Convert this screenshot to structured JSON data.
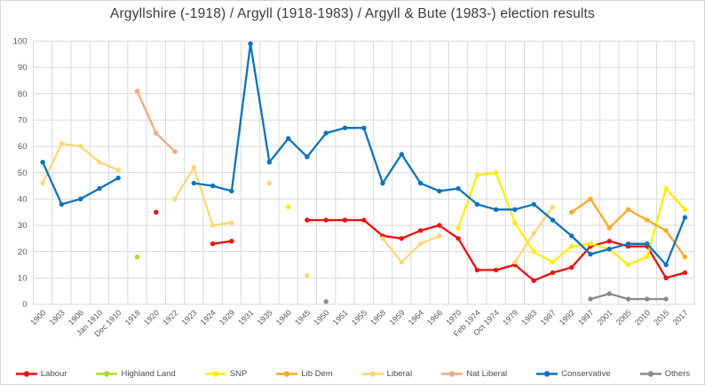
{
  "chart_data": {
    "type": "line",
    "title": "Argyllshire (-1918) / Argyll (1918-1983) / Argyll & Bute (1983-) election results",
    "categories": [
      "1900",
      "1903",
      "1906",
      "Jan 1910",
      "Dec 1910",
      "1918",
      "1920",
      "1922",
      "1923",
      "1924",
      "1929",
      "1931",
      "1935",
      "1940",
      "1945",
      "1950",
      "1951",
      "1955",
      "1958",
      "1959",
      "1964",
      "1966",
      "1970",
      "Feb 1974",
      "Oct 1974",
      "1979",
      "1983",
      "1987",
      "1992",
      "1997",
      "2001",
      "2005",
      "2010",
      "2015",
      "2017"
    ],
    "ylim": [
      0,
      100
    ],
    "y_ticks": [
      0,
      10,
      20,
      30,
      40,
      50,
      60,
      70,
      80,
      90,
      100
    ],
    "grid": true,
    "legend_position": "bottom",
    "series": [
      {
        "name": "Labour",
        "color": "#F40B0B",
        "values": [
          null,
          null,
          null,
          null,
          null,
          null,
          35,
          null,
          null,
          23,
          24,
          null,
          null,
          null,
          32,
          32,
          32,
          32,
          26,
          25,
          28,
          30,
          25,
          13,
          13,
          15,
          9,
          12,
          14,
          22,
          24,
          22,
          22,
          10,
          12
        ]
      },
      {
        "name": "Highland Land",
        "color": "#A8E02A",
        "values": [
          null,
          null,
          null,
          null,
          null,
          18,
          null,
          null,
          null,
          null,
          null,
          null,
          null,
          null,
          null,
          null,
          null,
          null,
          null,
          null,
          null,
          null,
          null,
          null,
          null,
          null,
          null,
          null,
          null,
          null,
          null,
          null,
          null,
          null,
          null
        ]
      },
      {
        "name": "SNP",
        "color": "#FFEE00",
        "values": [
          null,
          null,
          null,
          null,
          null,
          null,
          null,
          null,
          null,
          null,
          null,
          null,
          null,
          37,
          null,
          null,
          null,
          null,
          null,
          null,
          null,
          null,
          29,
          49,
          50,
          31,
          20,
          16,
          22,
          23,
          21,
          15,
          18,
          44,
          36
        ]
      },
      {
        "name": "Lib Dem",
        "color": "#FFA826",
        "values": [
          null,
          null,
          null,
          null,
          null,
          null,
          null,
          null,
          null,
          null,
          null,
          null,
          null,
          null,
          null,
          null,
          null,
          null,
          null,
          null,
          null,
          null,
          null,
          null,
          null,
          null,
          null,
          null,
          35,
          40,
          29,
          36,
          32,
          28,
          18
        ]
      },
      {
        "name": "Liberal",
        "color": "#FFD778",
        "values": [
          46,
          61,
          60,
          54,
          51,
          null,
          null,
          40,
          52,
          30,
          31,
          null,
          46,
          null,
          11,
          null,
          null,
          null,
          25,
          16,
          23,
          26,
          null,
          null,
          null,
          16,
          27,
          37,
          null,
          null,
          null,
          null,
          null,
          null,
          null
        ]
      },
      {
        "name": "Nat Liberal",
        "color": "#F2A87D",
        "values": [
          null,
          null,
          null,
          null,
          null,
          81,
          65,
          58,
          null,
          null,
          null,
          null,
          null,
          null,
          null,
          null,
          null,
          null,
          null,
          null,
          null,
          null,
          null,
          null,
          null,
          null,
          null,
          null,
          null,
          null,
          null,
          null,
          null,
          null,
          null
        ]
      },
      {
        "name": "Conservative",
        "color": "#0C72BE",
        "values": [
          54,
          38,
          40,
          44,
          48,
          null,
          null,
          null,
          46,
          45,
          43,
          99,
          54,
          63,
          56,
          65,
          67,
          67,
          46,
          57,
          46,
          43,
          44,
          38,
          36,
          36,
          38,
          32,
          26,
          19,
          21,
          23,
          23,
          15,
          33
        ]
      },
      {
        "name": "Others",
        "color": "#8A8A8A",
        "values": [
          null,
          null,
          null,
          null,
          null,
          null,
          null,
          null,
          null,
          null,
          null,
          null,
          null,
          null,
          null,
          1,
          null,
          null,
          null,
          null,
          null,
          null,
          null,
          null,
          null,
          null,
          null,
          null,
          null,
          2,
          4,
          2,
          2,
          2,
          null
        ]
      }
    ]
  }
}
